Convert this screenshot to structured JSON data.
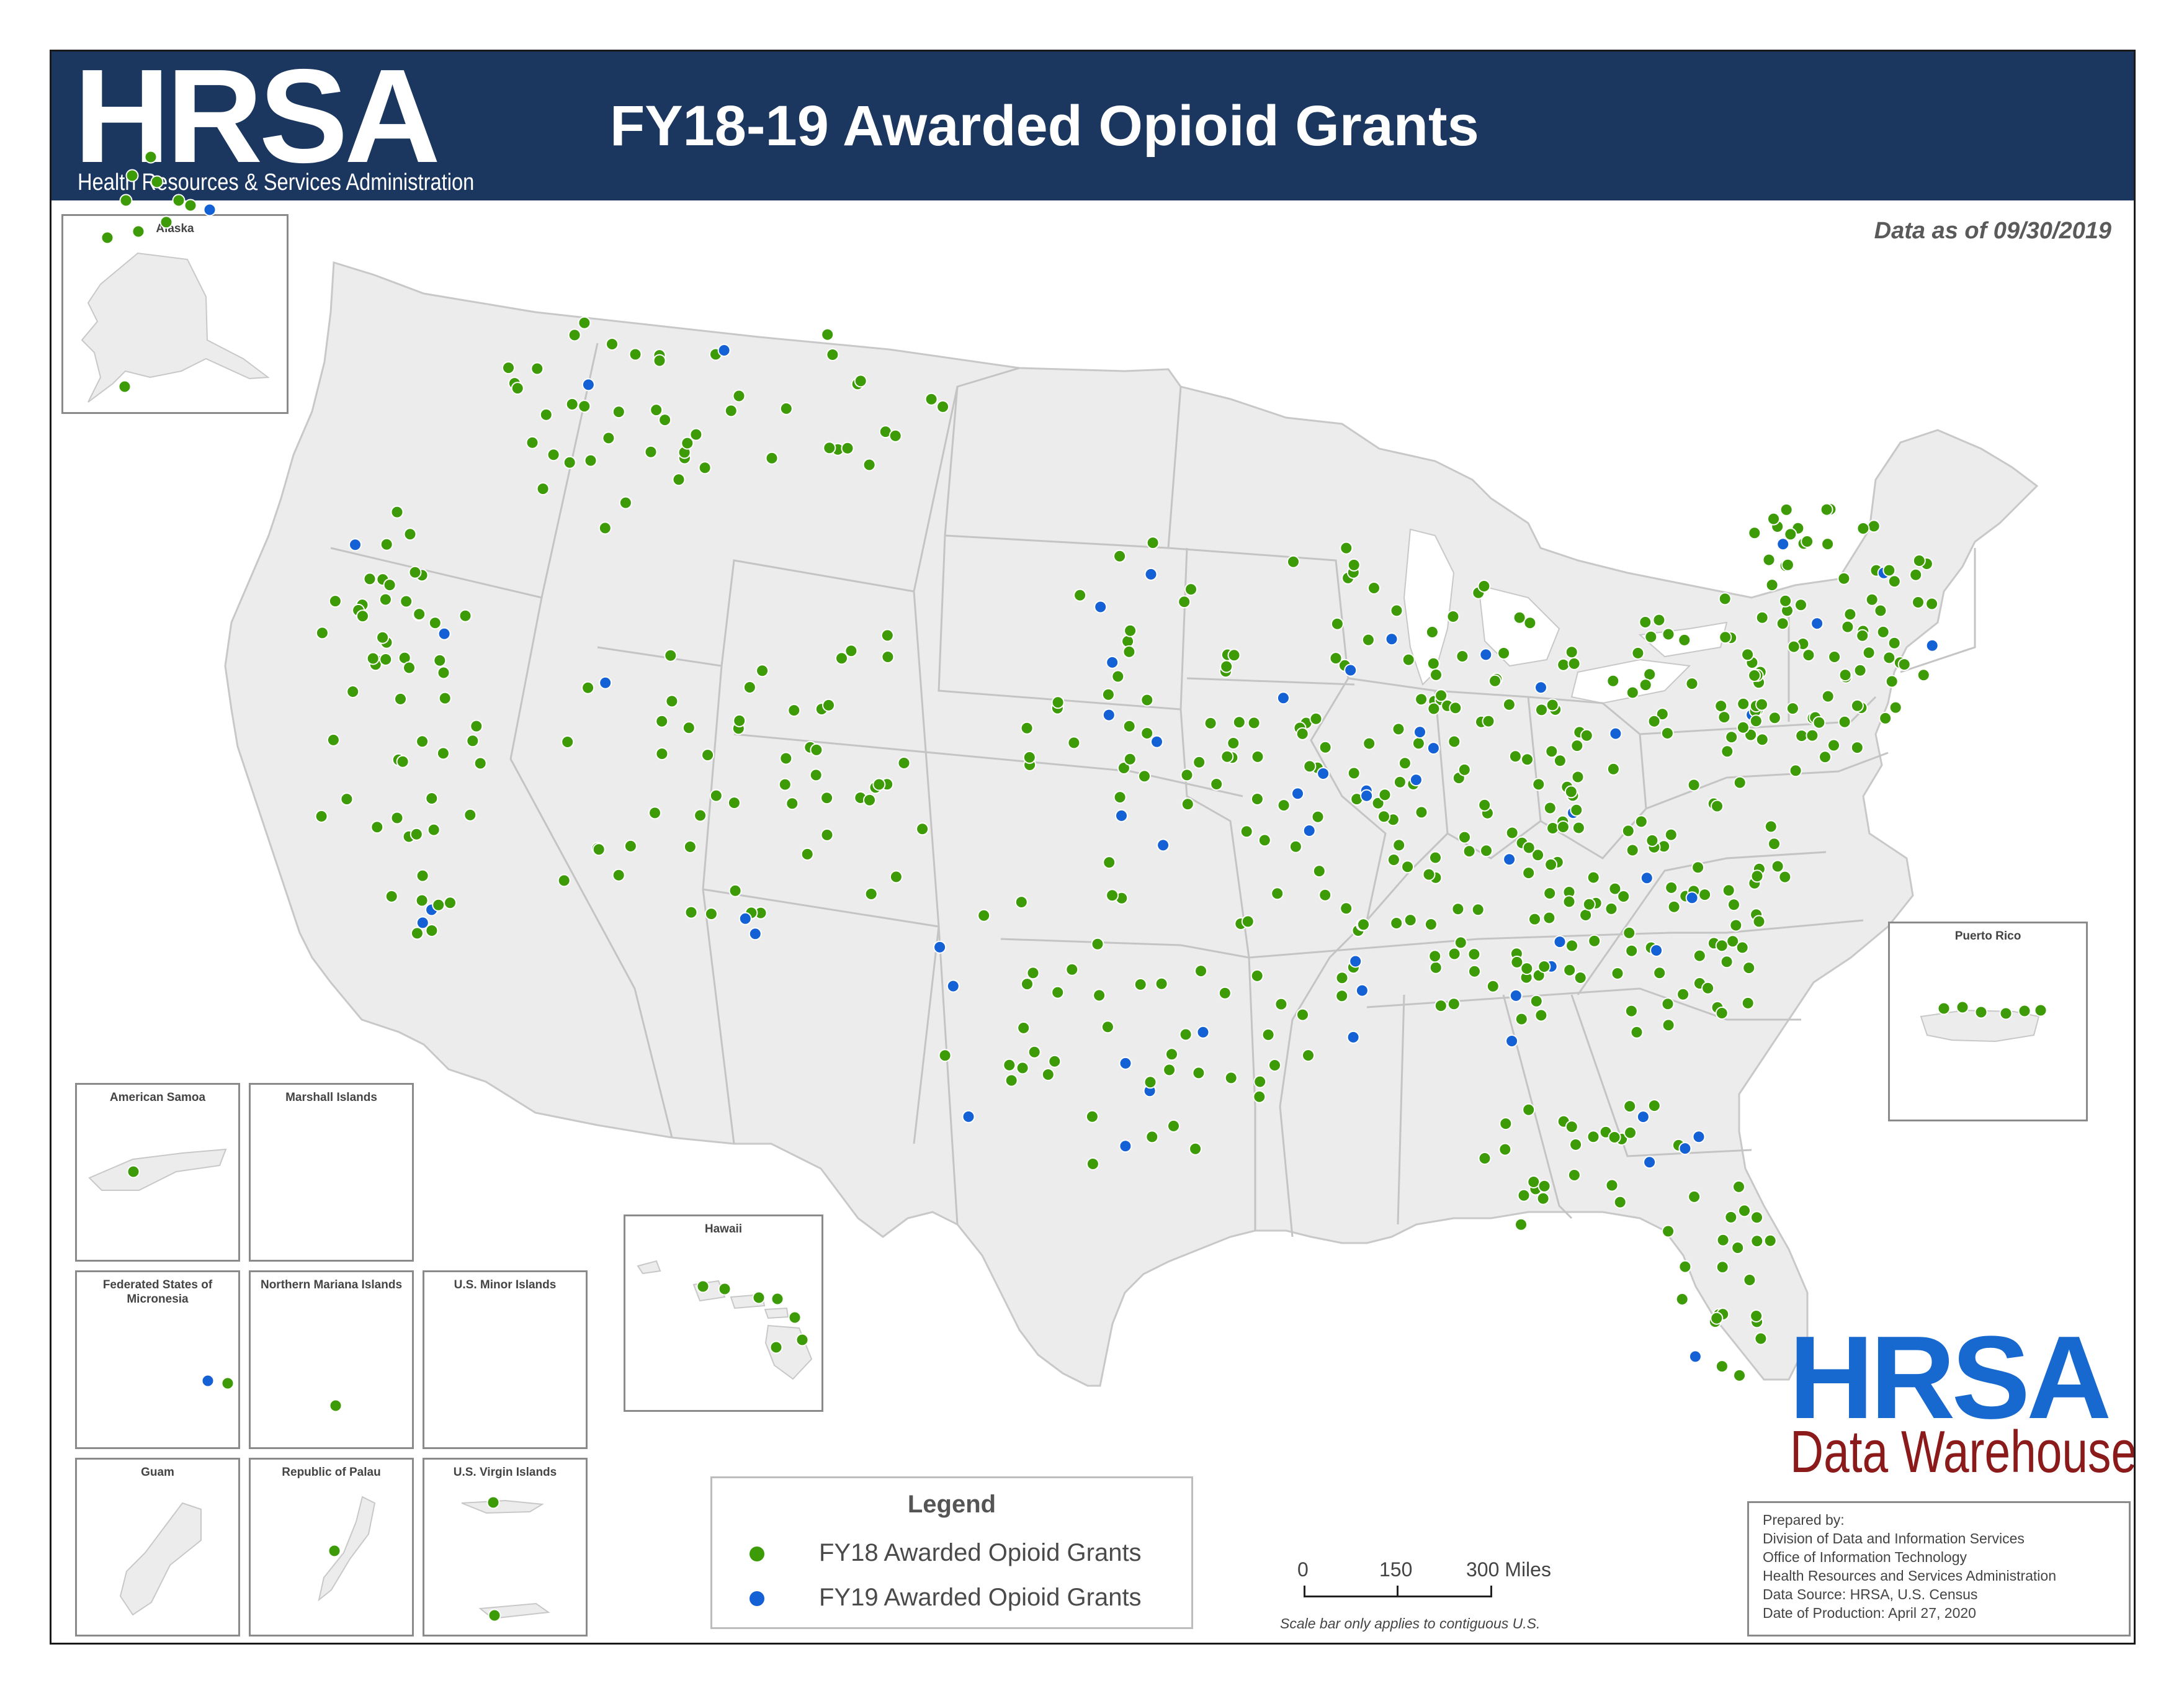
{
  "header": {
    "logo_text": "HRSA",
    "logo_subtitle": "Health Resources & Services Administration",
    "title": "FY18-19 Awarded Opioid Grants"
  },
  "data_date": "Data as of 09/30/2019",
  "colors": {
    "header_bg": "#1b375f",
    "fy18": "#3d9b07",
    "fy19": "#1461d6",
    "land": "#ececec",
    "border": "#c8c8c8",
    "dw_blue": "#1769d0",
    "dw_red": "#8b1a1a"
  },
  "insets": {
    "alaska": "Alaska",
    "puerto_rico": "Puerto Rico",
    "hawaii": "Hawaii",
    "american_samoa": "American Samoa",
    "marshall_islands": "Marshall Islands",
    "micronesia": "Federated States of Micronesia",
    "northern_mariana": "Northern Mariana Islands",
    "us_minor": "U.S. Minor Islands",
    "guam": "Guam",
    "palau": "Republic of Palau",
    "virgin_islands": "U.S. Virgin Islands"
  },
  "legend": {
    "title": "Legend",
    "fy18_label": "FY18 Awarded Opioid Grants",
    "fy19_label": "FY19 Awarded Opioid Grants"
  },
  "scale": {
    "t0": "0",
    "t1": "150",
    "t2": "300 Miles",
    "note": "Scale bar only applies to contiguous U.S."
  },
  "dw_logo": {
    "hrsa": "HRSA",
    "subtitle": "Data Warehouse"
  },
  "prepared": {
    "l1": "Prepared by:",
    "l2": "Division of Data and Information Services",
    "l3": "Office of Information Technology",
    "l4": "Health Resources and Services Administration",
    "l5": "Data Source: HRSA, U.S. Census",
    "l6": "Date of Production: April 27, 2020"
  }
}
